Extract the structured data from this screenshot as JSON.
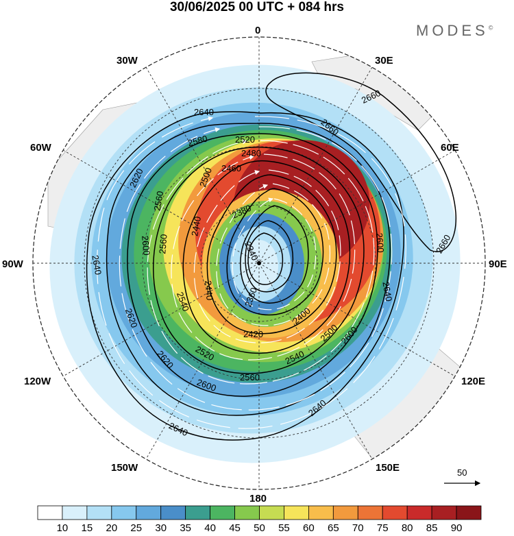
{
  "title": "30/06/2025  00 UTC  + 084 hrs",
  "brand": "MODES",
  "brand_mark": "©",
  "meridian_labels": {
    "m0": "0",
    "m30e": "30E",
    "m60e": "60E",
    "m90e": "90E",
    "m120e": "120E",
    "m150e": "150E",
    "m180": "180",
    "m150w": "150W",
    "m120w": "120W",
    "m90w": "90W",
    "m60w": "60W",
    "m30w": "30W"
  },
  "contour_labels": {
    "c2640": "2640",
    "c2660": "2660",
    "c2620": "2620",
    "c2600": "2600",
    "c2580": "2580",
    "c2560": "2560",
    "c2540": "2540",
    "c2520": "2520",
    "c2500": "2500",
    "c2480": "2480",
    "c2460": "2460",
    "c2440": "2440",
    "c2420": "2420",
    "c2400": "2400",
    "c2380": "2380",
    "c2360": "2360",
    "c2340": "2340"
  },
  "vector_scale": {
    "label": "50"
  },
  "colorbar": {
    "ticks": [
      "10",
      "15",
      "20",
      "25",
      "30",
      "35",
      "40",
      "45",
      "50",
      "55",
      "60",
      "65",
      "70",
      "75",
      "80",
      "85",
      "90"
    ],
    "colors": [
      "#ffffff",
      "#d9f0fb",
      "#b3e0f6",
      "#86c8ee",
      "#62a9dd",
      "#4a8ec9",
      "#3b9e8f",
      "#4cb561",
      "#86c94d",
      "#c6dc52",
      "#f6e45a",
      "#f8bd4b",
      "#f29a3d",
      "#ec7436",
      "#e34a2f",
      "#c92a2a",
      "#a81f22",
      "#8a1519"
    ]
  },
  "colors": {
    "land": "#eeeeee",
    "contour": "#000000",
    "vectors": "#ffffff"
  }
}
